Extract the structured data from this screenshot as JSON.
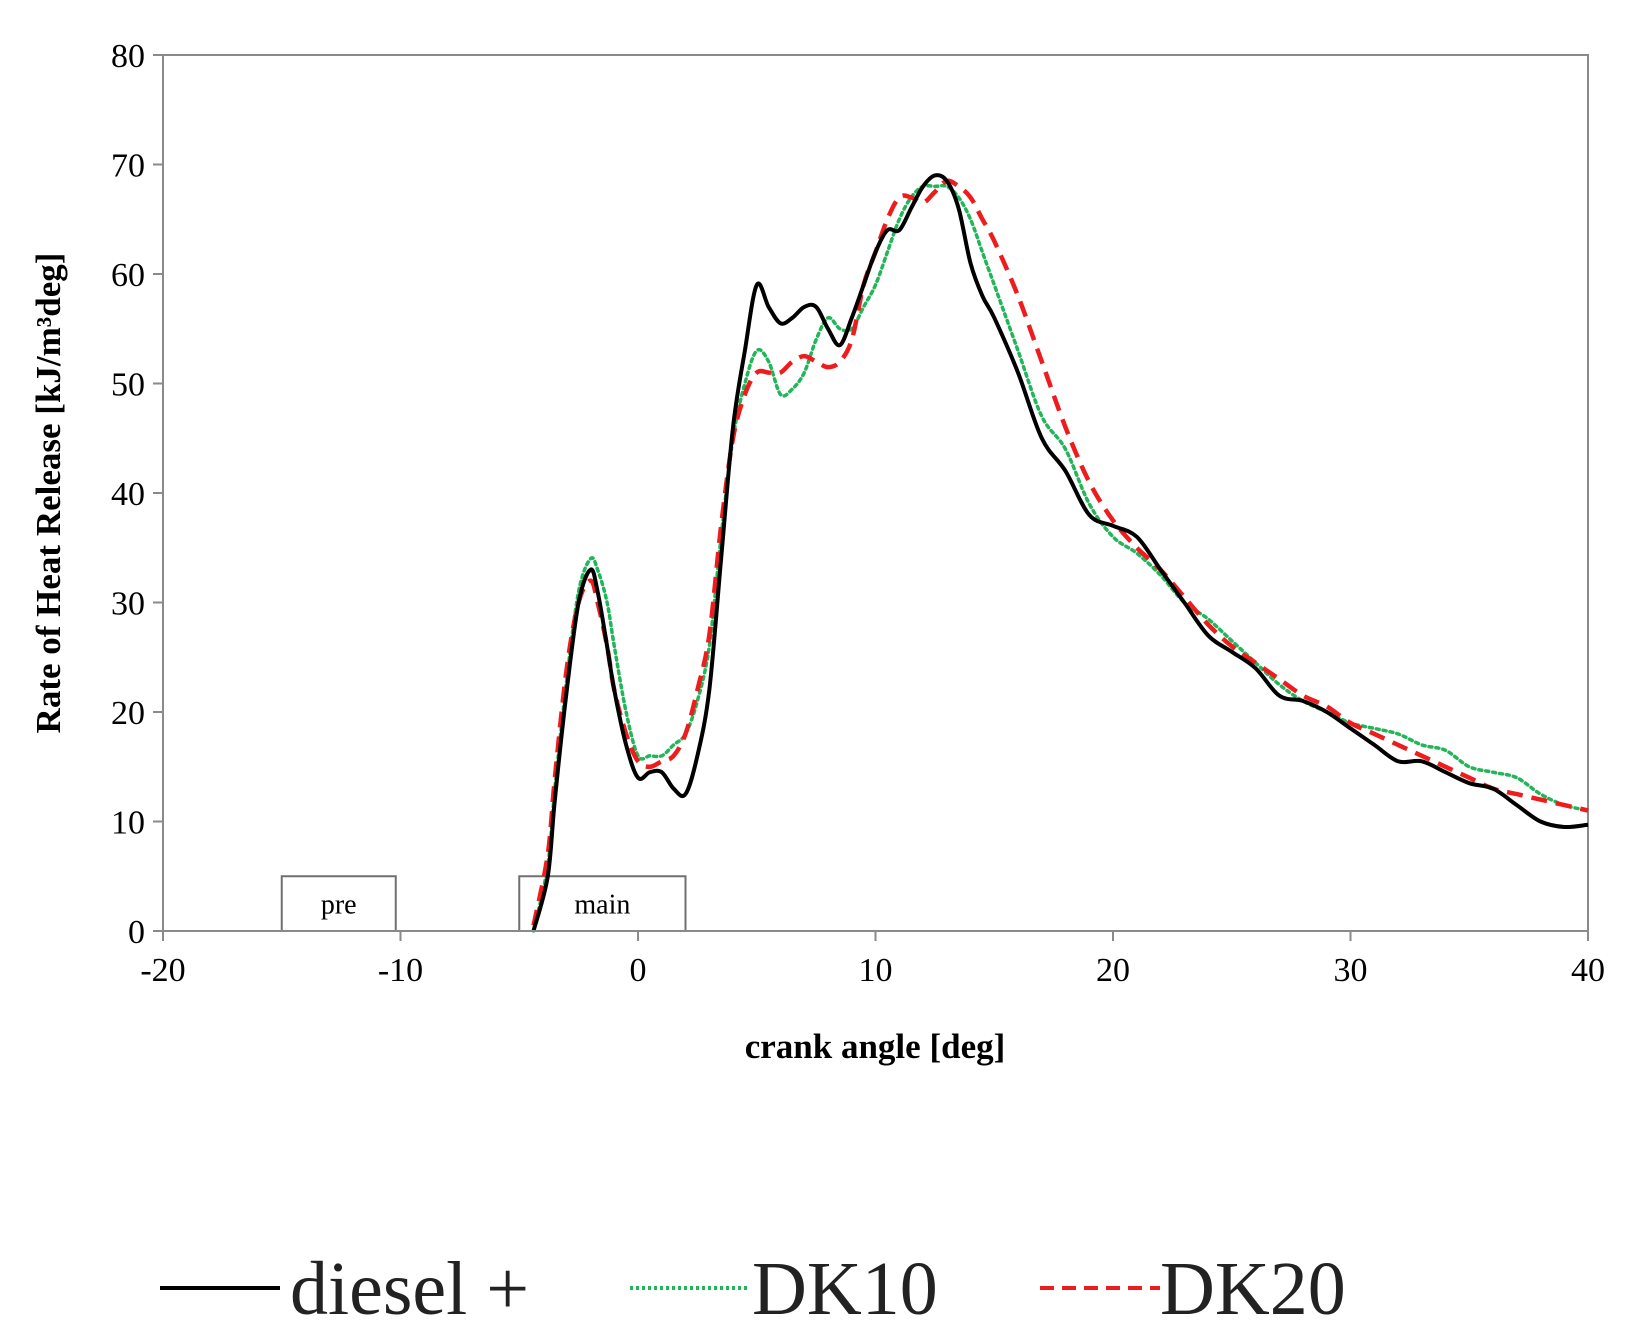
{
  "chart_data": {
    "type": "line",
    "xlabel": "crank angle [deg]",
    "ylabel": "Rate of Heat Release [kJ/m³deg]",
    "xlim": [
      -20,
      40
    ],
    "ylim": [
      0,
      80
    ],
    "xticks": [
      "-20",
      "-10",
      "0",
      "10",
      "20",
      "30",
      "40"
    ],
    "yticks": [
      "0",
      "10",
      "20",
      "30",
      "40",
      "50",
      "60",
      "70",
      "80"
    ],
    "grid": false,
    "legend_position": "bottom",
    "annotations": [
      {
        "label": "pre",
        "x_start": -15,
        "x_end": -10.2,
        "y_top": 5
      },
      {
        "label": "main",
        "x_start": -5,
        "x_end": 2,
        "y_top": 5
      }
    ],
    "series": [
      {
        "name": "diesel +",
        "color": "#000000",
        "style": "solid",
        "x": [
          -4.4,
          -3.8,
          -3.5,
          -3,
          -2.5,
          -2,
          -1.7,
          -1.3,
          -1,
          -0.5,
          0,
          0.5,
          1,
          1.5,
          2,
          2.5,
          3,
          3.5,
          4,
          4.5,
          5,
          5.5,
          6,
          6.5,
          7,
          7.5,
          8,
          8.5,
          9,
          9.5,
          10,
          10.5,
          11,
          11.5,
          12,
          12.5,
          13,
          13.5,
          14,
          14.5,
          15,
          16,
          17,
          18,
          19,
          20,
          21,
          22,
          23,
          24,
          25,
          26,
          27,
          28,
          29,
          30,
          31,
          32,
          33,
          34,
          35,
          36,
          37,
          38,
          39,
          40
        ],
        "y": [
          0,
          5,
          12,
          22,
          30,
          33,
          31,
          26,
          22,
          17,
          14,
          14.5,
          14.5,
          13,
          12.5,
          16,
          22,
          34,
          46,
          53,
          59,
          57,
          55.5,
          56,
          57,
          57,
          55,
          53.5,
          56,
          59,
          62,
          64,
          64,
          66,
          68,
          69,
          68.5,
          66,
          61,
          58,
          56,
          51,
          45,
          42,
          38,
          37,
          36,
          33,
          30,
          27,
          25.5,
          24,
          21.5,
          21,
          20,
          18.5,
          17,
          15.5,
          15.5,
          14.5,
          13.5,
          13,
          11.5,
          10,
          9.5,
          9.7
        ]
      },
      {
        "name": "DK10",
        "color": "#22b55a",
        "style": "dotted",
        "x": [
          -4.4,
          -3.8,
          -3.5,
          -3,
          -2.5,
          -2,
          -1.7,
          -1.3,
          -1,
          -0.5,
          0,
          0.5,
          1,
          1.5,
          2,
          2.5,
          3,
          3.5,
          4,
          4.5,
          5,
          5.5,
          6,
          6.5,
          7,
          7.5,
          8,
          8.5,
          9,
          9.5,
          10,
          10.5,
          11,
          11.5,
          12,
          12.5,
          13,
          13.5,
          14,
          14.5,
          15,
          16,
          17,
          18,
          19,
          20,
          21,
          22,
          23,
          24,
          25,
          26,
          27,
          28,
          29,
          30,
          31,
          32,
          33,
          34,
          35,
          36,
          37,
          38,
          39,
          40
        ],
        "y": [
          0,
          6,
          13,
          23,
          31,
          34,
          33,
          30,
          26,
          20,
          16,
          16,
          16,
          17,
          18,
          21,
          26,
          36,
          45,
          50,
          53,
          52,
          49,
          49.5,
          51,
          54,
          56,
          55,
          55,
          57,
          59,
          62,
          65,
          67,
          68,
          68,
          68,
          67,
          65,
          62,
          59,
          53,
          47,
          44,
          39,
          36,
          34.5,
          32.5,
          30,
          28.5,
          26.5,
          24.5,
          22.5,
          21,
          20,
          19,
          18.5,
          18,
          17,
          16.5,
          15,
          14.5,
          14,
          12.5,
          11.5,
          11
        ]
      },
      {
        "name": "DK20",
        "color": "#ee1c1c",
        "style": "dashed",
        "x": [
          -4.4,
          -3.8,
          -3.5,
          -3,
          -2.5,
          -2,
          -1.7,
          -1.3,
          -1,
          -0.5,
          0,
          0.5,
          1,
          1.5,
          2,
          2.5,
          3,
          3.5,
          4,
          4.5,
          5,
          5.5,
          6,
          6.5,
          7,
          7.5,
          8,
          8.5,
          9,
          9.5,
          10,
          10.5,
          11,
          11.5,
          12,
          12.5,
          13,
          13.5,
          14,
          14.5,
          15,
          16,
          17,
          18,
          19,
          20,
          21,
          22,
          23,
          24,
          25,
          26,
          27,
          28,
          29,
          30,
          31,
          32,
          33,
          34,
          35,
          36,
          37,
          38,
          39,
          40
        ],
        "y": [
          0.5,
          7,
          14,
          24,
          30,
          32,
          30,
          26,
          22,
          18,
          15.5,
          15,
          15.5,
          16,
          18,
          22,
          27,
          37,
          45,
          49,
          51,
          51,
          51,
          52,
          52.5,
          52,
          51.5,
          52,
          54,
          59,
          62,
          65,
          67,
          67,
          66.5,
          67.5,
          68.5,
          68,
          67,
          65,
          63,
          58,
          52,
          46,
          41,
          37.5,
          35,
          33,
          30.5,
          28,
          26,
          24.5,
          23,
          21.5,
          20.5,
          19,
          18,
          17,
          16,
          15,
          14,
          13,
          12.5,
          12,
          11.5,
          11
        ]
      }
    ]
  }
}
